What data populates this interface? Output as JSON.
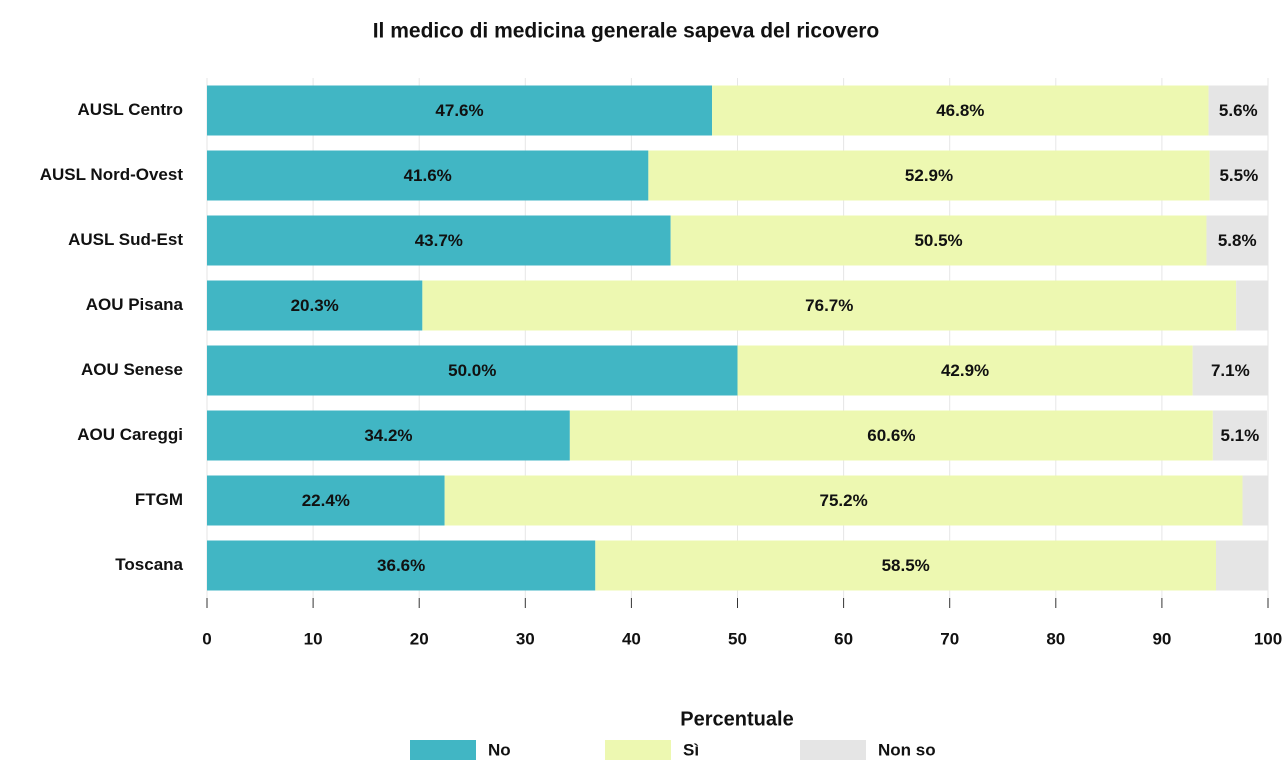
{
  "chart_data": {
    "type": "stacked-bar-horizontal",
    "title": "Il medico di medicina generale sapeva del ricovero",
    "xlabel": "Percentuale",
    "categories": [
      "AUSL Centro",
      "AUSL Nord-Ovest",
      "AUSL Sud-Est",
      "AOU Pisana",
      "AOU Senese",
      "AOU Careggi",
      "FTGM",
      "Toscana"
    ],
    "series": [
      {
        "name": "No",
        "color": "#41b6c4",
        "values": [
          47.6,
          41.6,
          43.7,
          20.3,
          50.0,
          34.2,
          22.4,
          36.6
        ],
        "value_labels": [
          "47.6%",
          "41.6%",
          "43.7%",
          "20.3%",
          "50.0%",
          "34.2%",
          "22.4%",
          "36.6%"
        ]
      },
      {
        "name": "Sì",
        "color": "#edf8b1",
        "values": [
          46.8,
          52.9,
          50.5,
          76.7,
          42.9,
          60.6,
          75.2,
          58.5
        ],
        "value_labels": [
          "46.8%",
          "52.9%",
          "50.5%",
          "76.7%",
          "42.9%",
          "60.6%",
          "75.2%",
          "58.5%"
        ]
      },
      {
        "name": "Non so",
        "color": "#e5e5e5",
        "values": [
          5.6,
          5.5,
          5.8,
          3.0,
          7.1,
          5.1,
          2.4,
          4.9
        ],
        "value_labels": [
          "5.6%",
          "5.5%",
          "5.8%",
          null,
          "7.1%",
          "5.1%",
          null,
          null
        ]
      }
    ],
    "xlim": [
      0,
      100
    ],
    "xticks": [
      0,
      10,
      20,
      30,
      40,
      50,
      60,
      70,
      80,
      90,
      100
    ],
    "grid": true,
    "legend": "bottom"
  }
}
